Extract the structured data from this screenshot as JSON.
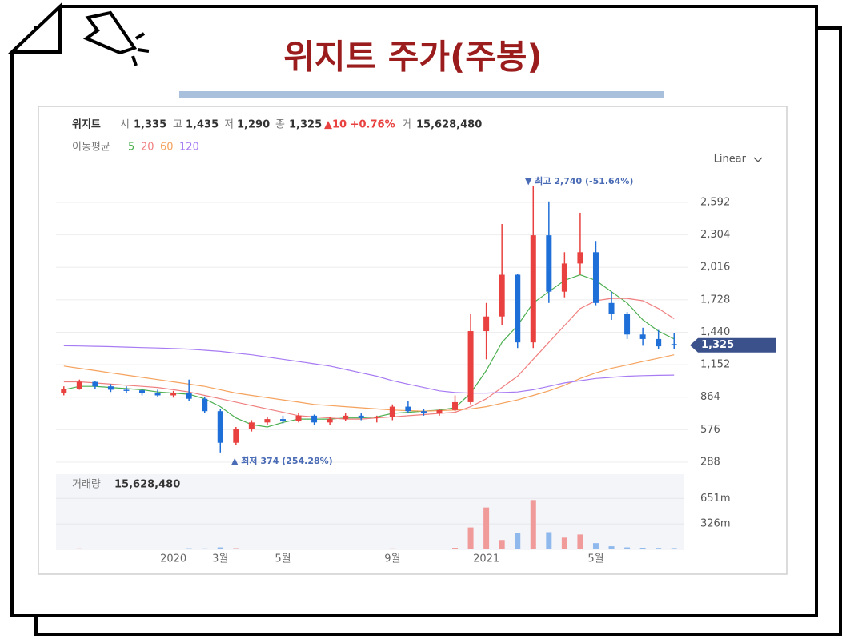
{
  "header": {
    "title": "위지트 주가(주봉)"
  },
  "chart_data": {
    "type": "candlestick",
    "name": "위지트",
    "quote": [
      {
        "label": "시",
        "value": "1,335"
      },
      {
        "label": "고",
        "value": "1,435"
      },
      {
        "label": "저",
        "value": "1,290"
      },
      {
        "label": "종",
        "value": "1,325"
      }
    ],
    "change": "▲10 +0.76%",
    "volume_quote": {
      "label": "거",
      "value": "15,628,480"
    },
    "scale_label": "Linear",
    "up_color": "#e8413f",
    "down_color": "#1f6fd8",
    "categories": [
      null,
      null,
      null,
      null,
      null,
      null,
      null,
      "2020",
      null,
      null,
      "3월",
      null,
      null,
      null,
      "5월",
      null,
      null,
      null,
      null,
      null,
      null,
      "9월",
      null,
      null,
      null,
      null,
      null,
      "2021",
      null,
      null,
      null,
      null,
      null,
      null,
      "5월",
      null,
      null,
      null,
      null,
      null
    ],
    "ohlc": [
      [
        900,
        960,
        880,
        940
      ],
      [
        940,
        1020,
        930,
        1000
      ],
      [
        1000,
        1010,
        940,
        960
      ],
      [
        960,
        980,
        910,
        930
      ],
      [
        930,
        960,
        900,
        925
      ],
      [
        925,
        940,
        880,
        900
      ],
      [
        900,
        930,
        870,
        880
      ],
      [
        880,
        920,
        860,
        900
      ],
      [
        900,
        1020,
        830,
        850
      ],
      [
        850,
        870,
        720,
        740
      ],
      [
        740,
        760,
        374,
        460
      ],
      [
        460,
        600,
        440,
        580
      ],
      [
        580,
        660,
        560,
        640
      ],
      [
        640,
        690,
        620,
        670
      ],
      [
        670,
        700,
        630,
        650
      ],
      [
        650,
        720,
        640,
        700
      ],
      [
        700,
        710,
        620,
        640
      ],
      [
        640,
        690,
        620,
        670
      ],
      [
        670,
        720,
        650,
        700
      ],
      [
        700,
        720,
        660,
        680
      ],
      [
        680,
        700,
        640,
        690
      ],
      [
        690,
        800,
        660,
        780
      ],
      [
        780,
        830,
        720,
        740
      ],
      [
        740,
        760,
        700,
        720
      ],
      [
        720,
        760,
        700,
        750
      ],
      [
        750,
        880,
        740,
        820
      ],
      [
        820,
        1600,
        800,
        1450
      ],
      [
        1450,
        1700,
        1200,
        1580
      ],
      [
        1580,
        2400,
        1500,
        1950
      ],
      [
        1950,
        1960,
        1300,
        1350
      ],
      [
        1350,
        2740,
        1300,
        2300
      ],
      [
        2300,
        2600,
        1700,
        1800
      ],
      [
        1800,
        2150,
        1750,
        2050
      ],
      [
        2050,
        2500,
        1950,
        2150
      ],
      [
        2150,
        2250,
        1680,
        1700
      ],
      [
        1700,
        1800,
        1550,
        1600
      ],
      [
        1600,
        1620,
        1380,
        1420
      ],
      [
        1420,
        1480,
        1320,
        1380
      ],
      [
        1380,
        1460,
        1290,
        1315
      ],
      [
        1335,
        1435,
        1290,
        1325
      ]
    ],
    "ylim": [
      200,
      2800
    ],
    "yticks": [
      288,
      576,
      864,
      {
        "value": 1152,
        "label": "1,152"
      },
      {
        "value": 1440,
        "label": "1,440"
      },
      {
        "value": 1728,
        "label": "1,728"
      },
      {
        "value": 2016,
        "label": "2,016"
      },
      {
        "value": 2304,
        "label": "2,304"
      },
      {
        "value": 2592,
        "label": "2,592"
      }
    ],
    "grid": true,
    "last_price": {
      "value": 1325,
      "label": "1,325"
    },
    "max_annotation": "▼ 최고 2,740 (-51.64%)",
    "min_annotation": "▲ 최저 374 (254.28%)",
    "moving_average": {
      "label": "이동평균",
      "series": [
        {
          "name": "5",
          "color": "#4caf50",
          "values": [
            930,
            960,
            960,
            950,
            940,
            930,
            910,
            900,
            890,
            850,
            780,
            680,
            620,
            600,
            640,
            670,
            670,
            670,
            680,
            680,
            690,
            720,
            730,
            740,
            750,
            770,
            900,
            1100,
            1350,
            1500,
            1700,
            1800,
            1900,
            1950,
            1900,
            1800,
            1700,
            1550,
            1450,
            1380
          ]
        },
        {
          "name": "20",
          "color": "#f07f7f",
          "values": [
            1000,
            1000,
            990,
            980,
            970,
            960,
            950,
            930,
            910,
            880,
            850,
            820,
            790,
            760,
            730,
            700,
            690,
            680,
            670,
            670,
            680,
            690,
            700,
            710,
            720,
            730,
            780,
            850,
            950,
            1050,
            1200,
            1350,
            1500,
            1650,
            1720,
            1740,
            1740,
            1720,
            1650,
            1560
          ]
        },
        {
          "name": "60",
          "color": "#f5a25d",
          "values": [
            1140,
            1120,
            1100,
            1080,
            1060,
            1040,
            1020,
            1000,
            980,
            960,
            930,
            900,
            880,
            860,
            840,
            820,
            800,
            790,
            780,
            770,
            760,
            750,
            745,
            740,
            745,
            750,
            760,
            780,
            810,
            840,
            880,
            920,
            970,
            1030,
            1080,
            1120,
            1150,
            1180,
            1210,
            1240
          ]
        },
        {
          "name": "120",
          "color": "#a77bf3",
          "values": [
            1320,
            1318,
            1315,
            1312,
            1308,
            1304,
            1300,
            1295,
            1290,
            1280,
            1270,
            1255,
            1240,
            1220,
            1200,
            1180,
            1160,
            1140,
            1110,
            1080,
            1050,
            1010,
            980,
            950,
            920,
            905,
            900,
            900,
            905,
            910,
            930,
            960,
            990,
            1010,
            1030,
            1040,
            1050,
            1055,
            1058,
            1060
          ]
        }
      ]
    },
    "volume": {
      "label": "거래량",
      "total": "15,628,480",
      "values": [
        10,
        12,
        8,
        8,
        9,
        8,
        10,
        9,
        14,
        12,
        25,
        15,
        10,
        9,
        8,
        9,
        8,
        9,
        10,
        8,
        9,
        12,
        10,
        8,
        9,
        20,
        280,
        535,
        120,
        210,
        630,
        220,
        150,
        190,
        80,
        40,
        25,
        20,
        18,
        16
      ],
      "ylim": [
        0,
        940
      ],
      "yticks": [
        {
          "value": 326,
          "label": "326m"
        },
        {
          "value": 651,
          "label": "651m"
        }
      ]
    }
  }
}
